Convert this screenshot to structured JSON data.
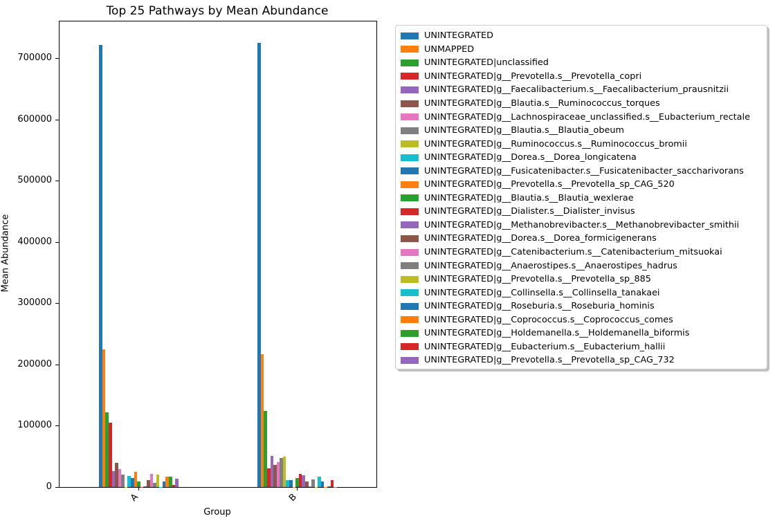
{
  "chart_data": {
    "type": "bar",
    "title": "Top 25 Pathways by Mean Abundance",
    "xlabel": "Group",
    "ylabel": "Mean Abundance",
    "categories": [
      "A",
      "B"
    ],
    "ylim": [
      0,
      761000
    ],
    "yticks": [
      0,
      100000,
      200000,
      300000,
      400000,
      500000,
      600000,
      700000
    ],
    "grid": false,
    "legend_position": "outside-right-top",
    "legend_border_color": "#cccccc",
    "palette": [
      "#1f77b4",
      "#ff7f0e",
      "#2ca02c",
      "#d62728",
      "#9467bd",
      "#8c564b",
      "#e377c2",
      "#7f7f7f",
      "#bcbd22",
      "#17becf"
    ],
    "series": [
      {
        "name": "UNINTEGRATED",
        "values": [
          723000,
          726000
        ]
      },
      {
        "name": "UNMAPPED",
        "values": [
          225000,
          217000
        ]
      },
      {
        "name": "UNINTEGRATED|unclassified",
        "values": [
          122000,
          124000
        ]
      },
      {
        "name": "UNINTEGRATED|g__Prevotella.s__Prevotella_copri",
        "values": [
          105000,
          31000
        ]
      },
      {
        "name": "UNINTEGRATED|g__Faecalibacterium.s__Faecalibacterium_prausnitzii",
        "values": [
          26000,
          51000
        ]
      },
      {
        "name": "UNINTEGRATED|g__Blautia.s__Ruminococcus_torques",
        "values": [
          40000,
          36000
        ]
      },
      {
        "name": "UNINTEGRATED|g__Lachnospiraceae_unclassified.s__Eubacterium_rectale",
        "values": [
          29000,
          41000
        ]
      },
      {
        "name": "UNINTEGRATED|g__Blautia.s__Blautia_obeum",
        "values": [
          20000,
          47000
        ]
      },
      {
        "name": "UNINTEGRATED|g__Ruminococcus.s__Ruminococcus_bromii",
        "values": [
          500,
          50000
        ]
      },
      {
        "name": "UNINTEGRATED|g__Dorea.s__Dorea_longicatena",
        "values": [
          18000,
          11000
        ]
      },
      {
        "name": "UNINTEGRATED|g__Fusicatenibacter.s__Fusicatenibacter_saccharivorans",
        "values": [
          15000,
          11000
        ]
      },
      {
        "name": "UNINTEGRATED|g__Prevotella.s__Prevotella_sp_CAG_520",
        "values": [
          25000,
          400
        ]
      },
      {
        "name": "UNINTEGRATED|g__Blautia.s__Blautia_wexlerae",
        "values": [
          9500,
          15000
        ]
      },
      {
        "name": "UNINTEGRATED|g__Dialister.s__Dialister_invisus",
        "values": [
          300,
          22000
        ]
      },
      {
        "name": "UNINTEGRATED|g__Methanobrevibacter.s__Methanobrevibacter_smithii",
        "values": [
          1500,
          19000
        ]
      },
      {
        "name": "UNINTEGRATED|g__Dorea.s__Dorea_formicigenerans",
        "values": [
          11000,
          8500
        ]
      },
      {
        "name": "UNINTEGRATED|g__Catenibacterium.s__Catenibacterium_mitsuokai",
        "values": [
          21000,
          700
        ]
      },
      {
        "name": "UNINTEGRATED|g__Anaerostipes.s__Anaerostipes_hadrus",
        "values": [
          6500,
          12000
        ]
      },
      {
        "name": "UNINTEGRATED|g__Prevotella.s__Prevotella_sp_885",
        "values": [
          20000,
          300
        ]
      },
      {
        "name": "UNINTEGRATED|g__Collinsella.s__Collinsella_tanakaei",
        "values": [
          400,
          16500
        ]
      },
      {
        "name": "UNINTEGRATED|g__Roseburia.s__Roseburia_hominis",
        "values": [
          9000,
          9000
        ]
      },
      {
        "name": "UNINTEGRATED|g__Coprococcus.s__Coprococcus_comes",
        "values": [
          17000,
          400
        ]
      },
      {
        "name": "UNINTEGRATED|g__Holdemanella.s__Holdemanella_biformis",
        "values": [
          17000,
          600
        ]
      },
      {
        "name": "UNINTEGRATED|g__Eubacterium.s__Eubacterium_hallii",
        "values": [
          3500,
          11000
        ]
      },
      {
        "name": "UNINTEGRATED|g__Prevotella.s__Prevotella_sp_CAG_732",
        "values": [
          14000,
          200
        ]
      }
    ]
  }
}
